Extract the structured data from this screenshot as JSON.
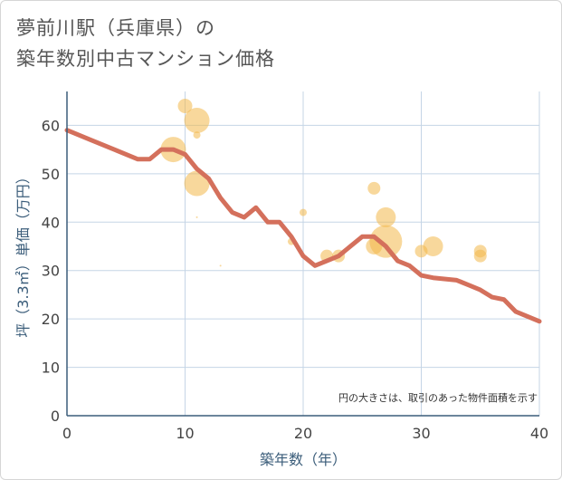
{
  "title_line1": "夢前川駅（兵庫県）の",
  "title_line2": "築年数別中古マンション価格",
  "chart_data": {
    "type": "scatter",
    "title": "夢前川駅（兵庫県）の 築年数別中古マンション価格",
    "xlabel": "築年数（年）",
    "ylabel": "坪（3.3㎡）単価（万円）",
    "xlim": [
      0,
      40
    ],
    "ylim": [
      0,
      67
    ],
    "xticks": [
      "0",
      "10",
      "20",
      "30",
      "40"
    ],
    "yticks": [
      "0",
      "10",
      "20",
      "30",
      "40",
      "50",
      "60"
    ],
    "xtick_values": [
      0,
      10,
      20,
      30,
      40
    ],
    "ytick_values": [
      0,
      10,
      20,
      30,
      40,
      50,
      60
    ],
    "grid": true,
    "note": "円の大きさは、取引のあった物件面積を示す",
    "colors": {
      "bubble": "#f2b84a",
      "line": "#d4705c",
      "grid": "#c5d5e6",
      "axis": "#3b5d7a"
    },
    "bubbles": [
      {
        "x": 9,
        "y": 55,
        "size": 14
      },
      {
        "x": 10,
        "y": 64,
        "size": 8
      },
      {
        "x": 11,
        "y": 61,
        "size": 14
      },
      {
        "x": 11,
        "y": 58,
        "size": 4
      },
      {
        "x": 11,
        "y": 48,
        "size": 14
      },
      {
        "x": 11,
        "y": 41,
        "size": 1
      },
      {
        "x": 13,
        "y": 31,
        "size": 1
      },
      {
        "x": 19,
        "y": 36,
        "size": 4
      },
      {
        "x": 20,
        "y": 42,
        "size": 4
      },
      {
        "x": 22,
        "y": 33,
        "size": 7
      },
      {
        "x": 23,
        "y": 33,
        "size": 7
      },
      {
        "x": 26,
        "y": 47,
        "size": 7
      },
      {
        "x": 26,
        "y": 35,
        "size": 9
      },
      {
        "x": 27,
        "y": 41,
        "size": 11
      },
      {
        "x": 27,
        "y": 36,
        "size": 18
      },
      {
        "x": 30,
        "y": 34,
        "size": 7
      },
      {
        "x": 31,
        "y": 35,
        "size": 11
      },
      {
        "x": 35,
        "y": 34,
        "size": 7
      },
      {
        "x": 35,
        "y": 33,
        "size": 7
      }
    ],
    "trend": {
      "x": [
        0,
        2,
        4,
        6,
        7,
        8,
        9,
        10,
        11,
        12,
        13,
        14,
        15,
        16,
        17,
        18,
        19,
        20,
        21,
        22,
        23,
        24,
        25,
        26,
        27,
        28,
        29,
        30,
        31,
        33,
        34,
        35,
        36,
        37,
        38,
        39,
        40
      ],
      "y": [
        59,
        57,
        55,
        53,
        53,
        55,
        55,
        54,
        51,
        49,
        45,
        42,
        41,
        43,
        40,
        40,
        37,
        33,
        31,
        32,
        33,
        35,
        37,
        37,
        35,
        32,
        31,
        29,
        28.5,
        28,
        27,
        26,
        24.5,
        24,
        21.5,
        20.5,
        19.5
      ]
    }
  }
}
